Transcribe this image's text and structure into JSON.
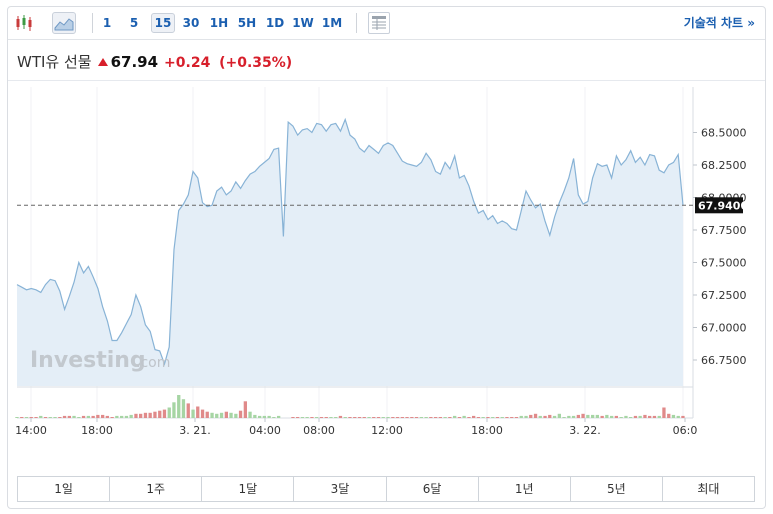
{
  "toolbar": {
    "chart_types": [
      "candlestick-icon",
      "area-chart-icon"
    ],
    "intervals": [
      "1",
      "5",
      "15",
      "30",
      "1H",
      "5H",
      "1D",
      "1W",
      "1M"
    ],
    "active_interval": "15",
    "table_icon": "table-icon",
    "tech_chart_link": "기술적 차트 »"
  },
  "quote": {
    "name": "WTI유 선물",
    "price": "67.94",
    "change": "+0.24",
    "change_pct": "(+0.35%)",
    "up_color": "#d71f2b"
  },
  "watermark": {
    "brand": "Investing",
    "suffix": ".com"
  },
  "range_tabs": [
    "1일",
    "1주",
    "1달",
    "3달",
    "6달",
    "1년",
    "5년",
    "최대"
  ],
  "colors": {
    "line": "#88b3d6",
    "area": "#e4eef7",
    "vol_up": "#a6d5a4",
    "vol_down": "#e08a8a",
    "link": "#1b5fb0"
  },
  "chart_data": {
    "type": "area",
    "title": "WTI유 선물",
    "x_labels": [
      "14:00",
      "18:00",
      "3. 21.",
      "04:00",
      "08:00",
      "12:00",
      "18:00",
      "3. 22.",
      "06:0"
    ],
    "y_ticks": [
      "68.5000",
      "68.2500",
      "68.0000",
      "67.7500",
      "67.5000",
      "67.2500",
      "67.0000",
      "66.7500"
    ],
    "ylim": [
      66.55,
      68.85
    ],
    "current_price_label": "67.9400",
    "current_price": 67.94,
    "series": [
      {
        "values": [
          67.33,
          67.31,
          67.29,
          67.3,
          67.29,
          67.27,
          67.33,
          67.37,
          67.36,
          67.28,
          67.14,
          67.24,
          67.35,
          67.5,
          67.42,
          67.47,
          67.39,
          67.3,
          67.16,
          67.05,
          66.9,
          66.9,
          66.96,
          67.03,
          67.1,
          67.25,
          67.16,
          67.02,
          66.97,
          66.83,
          66.82,
          66.72,
          66.85,
          67.6,
          67.9,
          67.95,
          68.02,
          68.2,
          68.15,
          67.96,
          67.93,
          67.94,
          68.05,
          68.08,
          68.02,
          68.05,
          68.12,
          68.07,
          68.13,
          68.18,
          68.2,
          68.24,
          68.27,
          68.3,
          68.37,
          68.38,
          67.7,
          68.58,
          68.55,
          68.48,
          68.52,
          68.53,
          68.5,
          68.57,
          68.56,
          68.51,
          68.56,
          68.57,
          68.51,
          68.6,
          68.48,
          68.45,
          68.38,
          68.35,
          68.4,
          68.37,
          68.34,
          68.4,
          68.42,
          68.4,
          68.34,
          68.28,
          68.26,
          68.25,
          68.24,
          68.27,
          68.34,
          68.29,
          68.2,
          68.18,
          68.27,
          68.22,
          68.32,
          68.15,
          68.17,
          68.09,
          67.97,
          67.88,
          67.9,
          67.83,
          67.86,
          67.8,
          67.82,
          67.8,
          67.76,
          67.75,
          67.9,
          68.05,
          67.98,
          67.92,
          67.95,
          67.82,
          67.71,
          67.85,
          67.96,
          68.05,
          68.15,
          68.3,
          68.02,
          67.95,
          67.97,
          68.15,
          68.26,
          68.24,
          68.25,
          68.15,
          68.32,
          68.25,
          68.29,
          68.36,
          68.27,
          68.31,
          68.25,
          68.33,
          68.32,
          68.21,
          68.19,
          68.25,
          68.27,
          68.33,
          67.94
        ]
      }
    ],
    "volume": {
      "values": [
        1,
        1,
        1,
        1,
        1,
        2,
        1,
        1,
        1,
        1,
        2,
        2,
        2,
        1,
        2,
        2,
        2,
        3,
        3,
        2,
        1,
        2,
        2,
        2,
        3,
        4,
        4,
        5,
        5,
        6,
        7,
        8,
        10,
        15,
        22,
        18,
        14,
        8,
        11,
        8,
        6,
        5,
        4,
        5,
        6,
        5,
        4,
        7,
        16,
        6,
        3,
        2,
        2,
        2,
        1,
        2,
        0,
        0,
        1,
        1,
        1,
        1,
        1,
        1,
        1,
        1,
        1,
        1,
        2,
        1,
        1,
        1,
        1,
        1,
        1,
        1,
        1,
        1,
        1,
        1,
        1,
        1,
        1,
        1,
        1,
        1,
        1,
        1,
        1,
        1,
        1,
        1,
        2,
        1,
        2,
        1,
        2,
        1,
        1,
        1,
        1,
        1,
        1,
        1,
        1,
        1,
        2,
        2,
        3,
        4,
        2,
        2,
        3,
        2,
        4,
        1,
        2,
        2,
        3,
        4,
        3,
        3,
        3,
        2,
        3,
        2,
        2,
        1,
        2,
        1,
        2,
        2,
        3,
        2,
        2,
        2,
        10,
        4,
        3,
        2,
        2
      ],
      "up": [
        1,
        0,
        1,
        0,
        0,
        1,
        0,
        1,
        1,
        0,
        0,
        0,
        1,
        1,
        0,
        1,
        0,
        0,
        0,
        0,
        0,
        1,
        1,
        1,
        1,
        0,
        0,
        0,
        0,
        0,
        0,
        0,
        1,
        1,
        1,
        1,
        0,
        1,
        0,
        0,
        0,
        1,
        1,
        1,
        0,
        1,
        1,
        0,
        0,
        1,
        1,
        1,
        1,
        1,
        1,
        1,
        0,
        1,
        0,
        0,
        1,
        1,
        0,
        1,
        0,
        0,
        1,
        1,
        0,
        1,
        0,
        0,
        0,
        0,
        1,
        0,
        0,
        1,
        1,
        0,
        0,
        0,
        0,
        0,
        0,
        1,
        1,
        0,
        0,
        0,
        1,
        0,
        1,
        0,
        1,
        0,
        0,
        0,
        1,
        0,
        1,
        0,
        1,
        0,
        0,
        0,
        1,
        1,
        0,
        0,
        1,
        0,
        0,
        1,
        1,
        1,
        1,
        1,
        0,
        0,
        1,
        1,
        1,
        0,
        1,
        1,
        0,
        1,
        1,
        1,
        0,
        1,
        0,
        0,
        0,
        1,
        0,
        0,
        1,
        1,
        0
      ]
    }
  }
}
